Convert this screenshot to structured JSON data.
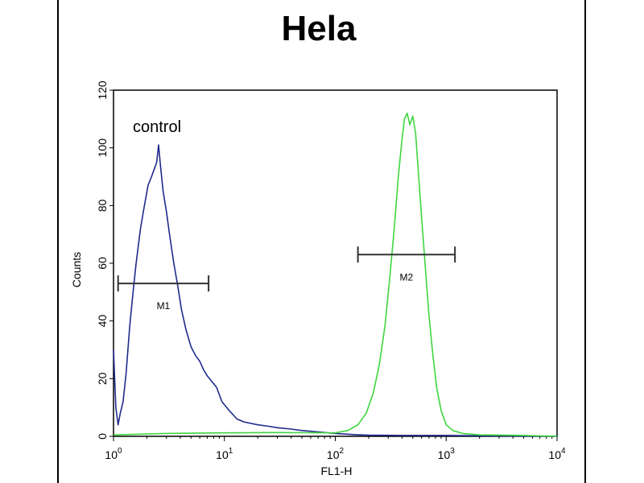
{
  "chart_data": {
    "type": "line",
    "title": "Hela",
    "xlabel": "FL1-H",
    "ylabel": "Counts",
    "x_scale": "log",
    "xlim": [
      1,
      10000
    ],
    "ylim": [
      0,
      120
    ],
    "x_ticks": [
      {
        "base": "10",
        "exp": "0",
        "value": 1
      },
      {
        "base": "10",
        "exp": "1",
        "value": 10
      },
      {
        "base": "10",
        "exp": "2",
        "value": 100
      },
      {
        "base": "10",
        "exp": "3",
        "value": 1000
      },
      {
        "base": "10",
        "exp": "4",
        "value": 10000
      }
    ],
    "y_ticks": [
      "0",
      "20",
      "40",
      "60",
      "80",
      "100",
      "120"
    ],
    "grid": false,
    "annotation": "control",
    "series": [
      {
        "color": "#1f2b8c",
        "points": [
          [
            1.0,
            30
          ],
          [
            1.05,
            10
          ],
          [
            1.1,
            4
          ],
          [
            1.15,
            8
          ],
          [
            1.22,
            12
          ],
          [
            1.3,
            22
          ],
          [
            1.4,
            38
          ],
          [
            1.5,
            50
          ],
          [
            1.6,
            60
          ],
          [
            1.75,
            72
          ],
          [
            1.9,
            80
          ],
          [
            2.05,
            87
          ],
          [
            2.2,
            90
          ],
          [
            2.35,
            93
          ],
          [
            2.45,
            95
          ],
          [
            2.55,
            101
          ],
          [
            2.65,
            94
          ],
          [
            2.8,
            85
          ],
          [
            3.0,
            78
          ],
          [
            3.2,
            70
          ],
          [
            3.5,
            60
          ],
          [
            3.8,
            52
          ],
          [
            4.1,
            44
          ],
          [
            4.5,
            37
          ],
          [
            5.0,
            31
          ],
          [
            5.5,
            28
          ],
          [
            6.0,
            26
          ],
          [
            6.5,
            23
          ],
          [
            7.0,
            21
          ],
          [
            7.7,
            19
          ],
          [
            8.5,
            17
          ],
          [
            9.5,
            12
          ],
          [
            11,
            9
          ],
          [
            13,
            6
          ],
          [
            15,
            5
          ],
          [
            20,
            4
          ],
          [
            25,
            3.5
          ],
          [
            30,
            3
          ],
          [
            40,
            2.5
          ],
          [
            50,
            2
          ],
          [
            70,
            1.5
          ],
          [
            100,
            1
          ],
          [
            150,
            0.6
          ],
          [
            200,
            0.4
          ],
          [
            400,
            0.3
          ],
          [
            1000,
            0.3
          ],
          [
            2000,
            0.2
          ],
          [
            5000,
            0.1
          ],
          [
            10000,
            0
          ]
        ]
      },
      {
        "color": "#3fd63f",
        "points": [
          [
            1.0,
            0.5
          ],
          [
            3,
            1
          ],
          [
            10,
            1.2
          ],
          [
            30,
            1.3
          ],
          [
            100,
            1.2
          ],
          [
            130,
            2
          ],
          [
            160,
            4
          ],
          [
            190,
            8
          ],
          [
            220,
            15
          ],
          [
            250,
            25
          ],
          [
            280,
            38
          ],
          [
            310,
            55
          ],
          [
            340,
            72
          ],
          [
            370,
            90
          ],
          [
            400,
            103
          ],
          [
            420,
            110
          ],
          [
            445,
            112
          ],
          [
            470,
            108
          ],
          [
            500,
            111
          ],
          [
            530,
            105
          ],
          [
            560,
            92
          ],
          [
            600,
            76
          ],
          [
            650,
            58
          ],
          [
            700,
            42
          ],
          [
            760,
            28
          ],
          [
            820,
            17
          ],
          [
            900,
            9
          ],
          [
            1000,
            4
          ],
          [
            1150,
            2
          ],
          [
            1400,
            1
          ],
          [
            2000,
            0.5
          ],
          [
            5000,
            0.3
          ],
          [
            10000,
            0
          ]
        ]
      }
    ],
    "markers": [
      {
        "label": "M1",
        "x_range": [
          1.1,
          7.2
        ],
        "y": 53
      },
      {
        "label": "M2",
        "x_range": [
          160,
          1200
        ],
        "y": 63
      }
    ]
  }
}
